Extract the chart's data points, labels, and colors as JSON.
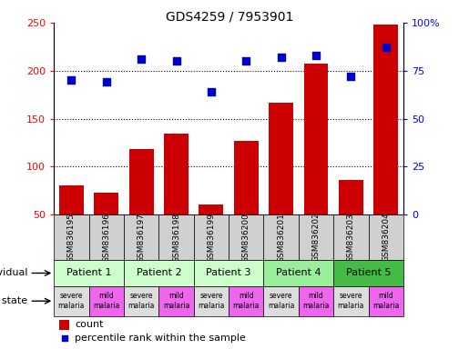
{
  "title": "GDS4259 / 7953901",
  "samples": [
    "GSM836195",
    "GSM836196",
    "GSM836197",
    "GSM836198",
    "GSM836199",
    "GSM836200",
    "GSM836201",
    "GSM836202",
    "GSM836203",
    "GSM836204"
  ],
  "counts": [
    80,
    73,
    118,
    134,
    61,
    127,
    167,
    207,
    86,
    248
  ],
  "percentiles": [
    70,
    69,
    81,
    80,
    64,
    80,
    82,
    83,
    72,
    87
  ],
  "patients": [
    {
      "label": "Patient 1",
      "cols": [
        0,
        1
      ],
      "color": "#ccffcc"
    },
    {
      "label": "Patient 2",
      "cols": [
        2,
        3
      ],
      "color": "#ccffcc"
    },
    {
      "label": "Patient 3",
      "cols": [
        4,
        5
      ],
      "color": "#ccffcc"
    },
    {
      "label": "Patient 4",
      "cols": [
        6,
        7
      ],
      "color": "#99ee99"
    },
    {
      "label": "Patient 5",
      "cols": [
        8,
        9
      ],
      "color": "#44bb44"
    }
  ],
  "disease_states": [
    {
      "label": "severe\nmalaria",
      "col": 0,
      "color": "#dddddd"
    },
    {
      "label": "mild\nmalaria",
      "col": 1,
      "color": "#ee66ee"
    },
    {
      "label": "severe\nmalaria",
      "col": 2,
      "color": "#dddddd"
    },
    {
      "label": "mild\nmalaria",
      "col": 3,
      "color": "#ee66ee"
    },
    {
      "label": "severe\nmalaria",
      "col": 4,
      "color": "#dddddd"
    },
    {
      "label": "mild\nmalaria",
      "col": 5,
      "color": "#ee66ee"
    },
    {
      "label": "severe\nmalaria",
      "col": 6,
      "color": "#dddddd"
    },
    {
      "label": "mild\nmalaria",
      "col": 7,
      "color": "#ee66ee"
    },
    {
      "label": "severe\nmalaria",
      "col": 8,
      "color": "#dddddd"
    },
    {
      "label": "mild\nmalaria",
      "col": 9,
      "color": "#ee66ee"
    }
  ],
  "ylim_left": [
    50,
    250
  ],
  "ylim_right": [
    0,
    100
  ],
  "yticks_left": [
    50,
    100,
    150,
    200,
    250
  ],
  "yticks_right": [
    0,
    25,
    50,
    75,
    100
  ],
  "bar_color": "#cc0000",
  "dot_color": "#0000cc",
  "sample_box_color": "#d0d0d0",
  "grid_yticks": [
    100,
    150,
    200
  ]
}
